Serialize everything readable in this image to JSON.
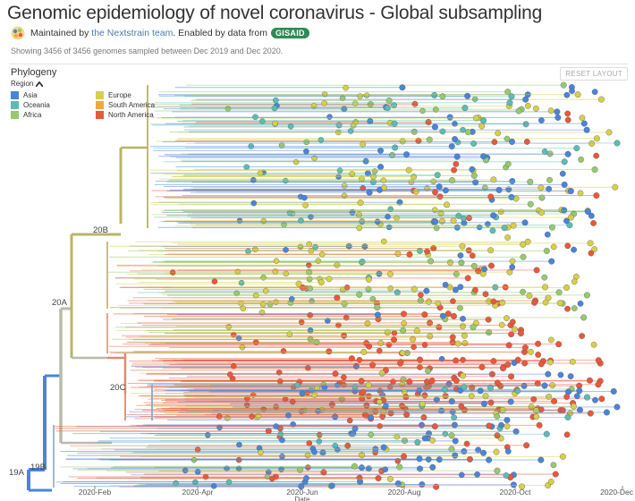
{
  "header": {
    "title": "Genomic epidemiology of novel coronavirus - Global subsampling",
    "maintained_prefix": "Maintained by",
    "team_link": "the Nextstrain team",
    "enabled_text": ". Enabled by data from",
    "gisaid_label": "GISAID",
    "showing_text": "Showing 3456 of 3456 genomes sampled between Dec 2019 and Dec 2020."
  },
  "panel": {
    "title": "Phylogeny",
    "reset_label": "RESET LAYOUT"
  },
  "legend": {
    "title": "Region",
    "toggle_icon": "chevron-up-icon",
    "items": [
      {
        "label": "Asia",
        "color": "#4a84d9"
      },
      {
        "label": "Oceania",
        "color": "#5cbcb4"
      },
      {
        "label": "Africa",
        "color": "#96c96e"
      },
      {
        "label": "Europe",
        "color": "#d6cf4a"
      },
      {
        "label": "South America",
        "color": "#f3a73f"
      },
      {
        "label": "North America",
        "color": "#e9583a"
      }
    ]
  },
  "clades": {
    "c19A": "19A",
    "c19B": "19B",
    "c20A": "20A",
    "c20B": "20B",
    "c20C": "20C"
  },
  "axis": {
    "ticks": [
      "2020-Feb",
      "2020-Apr",
      "2020-Jun",
      "2020-Aug",
      "2020-Oct",
      "2020-Dec"
    ],
    "label": "Date"
  }
}
